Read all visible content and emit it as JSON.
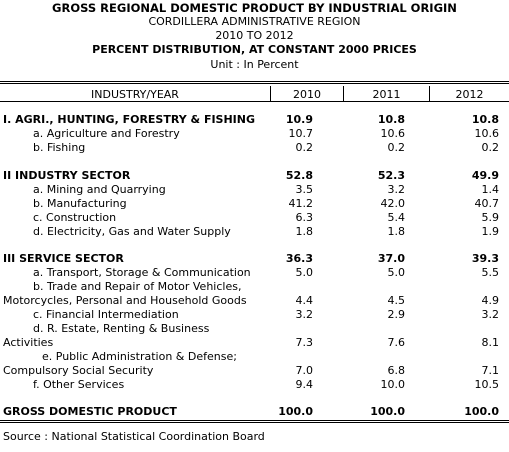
{
  "header": {
    "title": "GROSS REGIONAL DOMESTIC PRODUCT BY INDUSTRIAL ORIGIN",
    "region": "CORDILLERA ADMINISTRATIVE REGION",
    "period": "2010 TO 2012",
    "subtitle": "PERCENT DISTRIBUTION, AT CONSTANT 2000 PRICES",
    "unit": "Unit : In Percent"
  },
  "table": {
    "columns": [
      "INDUSTRY/YEAR",
      "2010",
      "2011",
      "2012"
    ],
    "rows": [
      {
        "label": "I. AGRI., HUNTING, FORESTRY & FISHING",
        "v2010": "10.9",
        "v2011": "10.8",
        "v2012": "10.8"
      },
      {
        "label": "a. Agriculture and Forestry",
        "v2010": "10.7",
        "v2011": "10.6",
        "v2012": "10.6"
      },
      {
        "label": "b. Fishing",
        "v2010": "0.2",
        "v2011": "0.2",
        "v2012": "0.2"
      },
      {
        "label": "II  INDUSTRY SECTOR",
        "v2010": "52.8",
        "v2011": "52.3",
        "v2012": "49.9"
      },
      {
        "label": "a. Mining and Quarrying",
        "v2010": "3.5",
        "v2011": "3.2",
        "v2012": "1.4"
      },
      {
        "label": "b. Manufacturing",
        "v2010": "41.2",
        "v2011": "42.0",
        "v2012": "40.7"
      },
      {
        "label": "c. Construction",
        "v2010": "6.3",
        "v2011": "5.4",
        "v2012": "5.9"
      },
      {
        "label": "d. Electricity, Gas and Water Supply",
        "v2010": "1.8",
        "v2011": "1.8",
        "v2012": "1.9"
      },
      {
        "label": "III  SERVICE SECTOR",
        "v2010": "36.3",
        "v2011": "37.0",
        "v2012": "39.3"
      },
      {
        "label": "a. Transport, Storage & Communication",
        "v2010": "5.0",
        "v2011": "5.0",
        "v2012": "5.5"
      },
      {
        "label_line1": "b. Trade and Repair of Motor Vehicles,",
        "label_line2": "Motorcycles, Personal and Household Goods",
        "v2010": "4.4",
        "v2011": "4.5",
        "v2012": "4.9"
      },
      {
        "label": "c.  Financial Intermediation",
        "v2010": "3.2",
        "v2011": "2.9",
        "v2012": "3.2"
      },
      {
        "label_line1": "d. R. Estate, Renting & Business",
        "label_line2": "Activities",
        "v2010": "7.3",
        "v2011": "7.6",
        "v2012": "8.1"
      },
      {
        "label_line1": "e. Public Administration & Defense;",
        "label_line2": "Compulsory Social Security",
        "v2010": "7.0",
        "v2011": "6.8",
        "v2012": "7.1"
      },
      {
        "label": "f. Other Services",
        "v2010": "9.4",
        "v2011": "10.0",
        "v2012": "10.5"
      },
      {
        "label": "GROSS DOMESTIC PRODUCT",
        "v2010": "100.0",
        "v2011": "100.0",
        "v2012": "100.0"
      }
    ]
  },
  "footer": {
    "source": "Source : National Statistical Coordination Board"
  }
}
